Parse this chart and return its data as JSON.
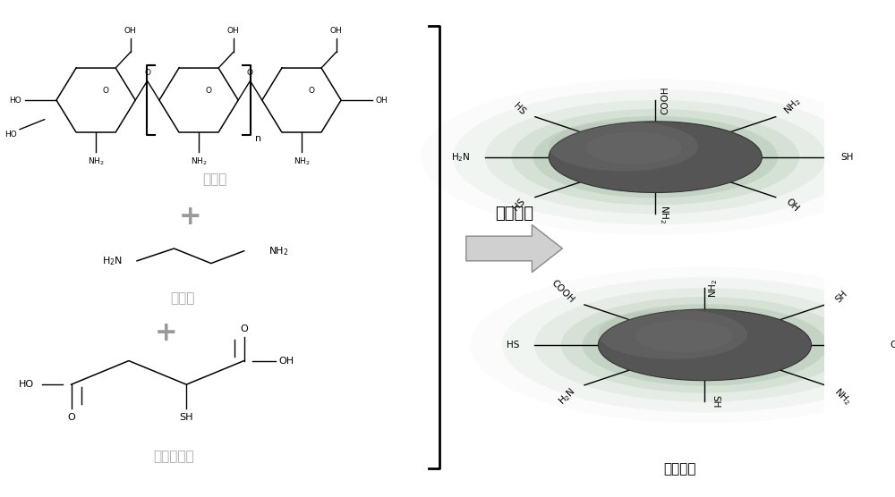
{
  "bg_color": "#ffffff",
  "fig_width": 10.0,
  "fig_height": 5.56,
  "dpi": 100,
  "label_chitosan": "壳聚糖",
  "label_ethylenediamine": "乙二胺",
  "label_thiomalic": "疏基丁二酸",
  "label_reaction": "水热反应",
  "label_fluorescent": "荧光碳点",
  "label_color_chinese": "#aaaaaa",
  "line_color": "#222222"
}
